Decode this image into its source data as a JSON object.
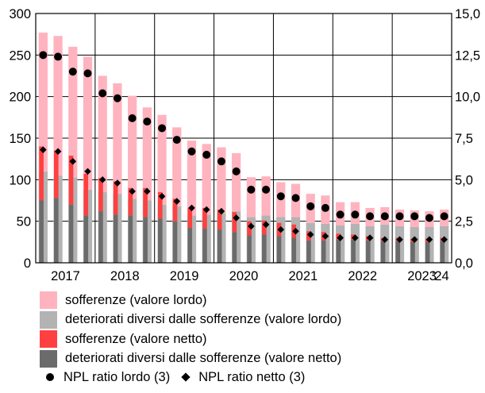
{
  "chart_data": {
    "type": "bar",
    "subtype": "stacked-bar-with-dual-axis-markers",
    "x_tick_labels": [
      "2017",
      "2018",
      "2019",
      "2020",
      "2021",
      "2022",
      "2023",
      "'24"
    ],
    "y_left": {
      "min": 0,
      "max": 300,
      "ticks": [
        "0",
        "50",
        "100",
        "150",
        "200",
        "250",
        "300"
      ]
    },
    "y_right": {
      "min": 0,
      "max": 15,
      "ticks": [
        "0,0",
        "2,5",
        "5,0",
        "7,5",
        "10,0",
        "12,5",
        "15,0"
      ]
    },
    "grid": true,
    "legend_placement": "bottom",
    "colors": {
      "gross_bad_loans": "#ffb3bf",
      "gross_other_npl": "#b3b3b3",
      "net_bad_loans": "#ff4040",
      "net_other_npl": "#6b6b6b",
      "markers": "#000000"
    },
    "quarters": [
      {
        "gross_other": 110,
        "gross_bad": 167,
        "net_other": 75,
        "net_bad": 65,
        "ratio_gross": 12.5,
        "ratio_net": 6.8
      },
      {
        "gross_other": 105,
        "gross_bad": 168,
        "net_other": 78,
        "net_bad": 57,
        "ratio_gross": 12.4,
        "ratio_net": 6.7
      },
      {
        "gross_other": 103,
        "gross_bad": 157,
        "net_other": 70,
        "net_bad": 59,
        "ratio_gross": 11.5,
        "ratio_net": 6.1
      },
      {
        "gross_other": 88,
        "gross_bad": 160,
        "net_other": 57,
        "net_bad": 50,
        "ratio_gross": 11.4,
        "ratio_net": 5.5
      },
      {
        "gross_other": 85,
        "gross_bad": 140,
        "net_other": 62,
        "net_bad": 40,
        "ratio_gross": 10.2,
        "ratio_net": 5.0
      },
      {
        "gross_other": 83,
        "gross_bad": 133,
        "net_other": 58,
        "net_bad": 40,
        "ratio_gross": 9.9,
        "ratio_net": 4.8
      },
      {
        "gross_other": 77,
        "gross_bad": 124,
        "net_other": 57,
        "net_bad": 33,
        "ratio_gross": 8.7,
        "ratio_net": 4.3
      },
      {
        "gross_other": 75,
        "gross_bad": 112,
        "net_other": 55,
        "net_bad": 35,
        "ratio_gross": 8.5,
        "ratio_net": 4.3
      },
      {
        "gross_other": 70,
        "gross_bad": 108,
        "net_other": 53,
        "net_bad": 32,
        "ratio_gross": 8.1,
        "ratio_net": 4.0
      },
      {
        "gross_other": 68,
        "gross_bad": 95,
        "net_other": 50,
        "net_bad": 27,
        "ratio_gross": 7.4,
        "ratio_net": 3.7
      },
      {
        "gross_other": 57,
        "gross_bad": 90,
        "net_other": 42,
        "net_bad": 24,
        "ratio_gross": 6.7,
        "ratio_net": 3.3
      },
      {
        "gross_other": 58,
        "gross_bad": 85,
        "net_other": 41,
        "net_bad": 25,
        "ratio_gross": 6.5,
        "ratio_net": 3.2
      },
      {
        "gross_other": 60,
        "gross_bad": 79,
        "net_other": 40,
        "net_bad": 24,
        "ratio_gross": 6.1,
        "ratio_net": 3.1
      },
      {
        "gross_other": 62,
        "gross_bad": 70,
        "net_other": 37,
        "net_bad": 24,
        "ratio_gross": 5.5,
        "ratio_net": 2.7
      },
      {
        "gross_other": 55,
        "gross_bad": 48,
        "net_other": 33,
        "net_bad": 17,
        "ratio_gross": 4.4,
        "ratio_net": 2.2
      },
      {
        "gross_other": 57,
        "gross_bad": 47,
        "net_other": 34,
        "net_bad": 17,
        "ratio_gross": 4.4,
        "ratio_net": 2.3
      },
      {
        "gross_other": 55,
        "gross_bad": 42,
        "net_other": 32,
        "net_bad": 16,
        "ratio_gross": 4.0,
        "ratio_net": 2.0
      },
      {
        "gross_other": 55,
        "gross_bad": 40,
        "net_other": 30,
        "net_bad": 16,
        "ratio_gross": 3.9,
        "ratio_net": 1.9
      },
      {
        "gross_other": 48,
        "gross_bad": 35,
        "net_other": 27,
        "net_bad": 11,
        "ratio_gross": 3.4,
        "ratio_net": 1.7
      },
      {
        "gross_other": 47,
        "gross_bad": 34,
        "net_other": 27,
        "net_bad": 10,
        "ratio_gross": 3.3,
        "ratio_net": 1.6
      },
      {
        "gross_other": 45,
        "gross_bad": 28,
        "net_other": 28,
        "net_bad": 7,
        "ratio_gross": 2.9,
        "ratio_net": 1.5
      },
      {
        "gross_other": 47,
        "gross_bad": 26,
        "net_other": 28,
        "net_bad": 6,
        "ratio_gross": 2.9,
        "ratio_net": 1.5
      },
      {
        "gross_other": 44,
        "gross_bad": 22,
        "net_other": 27,
        "net_bad": 5,
        "ratio_gross": 2.8,
        "ratio_net": 1.5
      },
      {
        "gross_other": 46,
        "gross_bad": 21,
        "net_other": 26,
        "net_bad": 4,
        "ratio_gross": 2.8,
        "ratio_net": 1.4
      },
      {
        "gross_other": 44,
        "gross_bad": 20,
        "net_other": 26,
        "net_bad": 4,
        "ratio_gross": 2.8,
        "ratio_net": 1.4
      },
      {
        "gross_other": 43,
        "gross_bad": 20,
        "net_other": 25,
        "net_bad": 4,
        "ratio_gross": 2.8,
        "ratio_net": 1.4
      },
      {
        "gross_other": 43,
        "gross_bad": 19,
        "net_other": 25,
        "net_bad": 4,
        "ratio_gross": 2.7,
        "ratio_net": 1.4
      },
      {
        "gross_other": 44,
        "gross_bad": 20,
        "net_other": 26,
        "net_bad": 4,
        "ratio_gross": 2.8,
        "ratio_net": 1.4
      }
    ]
  },
  "legend": {
    "gross_bad_loans": "sofferenze (valore lordo)",
    "gross_other_npl": "deteriorati diversi dalle sofferenze (valore lordo)",
    "net_bad_loans": "sofferenze (valore netto)",
    "net_other_npl": "deteriorati diversi dalle sofferenze (valore netto)",
    "ratio_gross": "NPL ratio lordo (3)",
    "ratio_net": "NPL ratio netto (3)"
  }
}
